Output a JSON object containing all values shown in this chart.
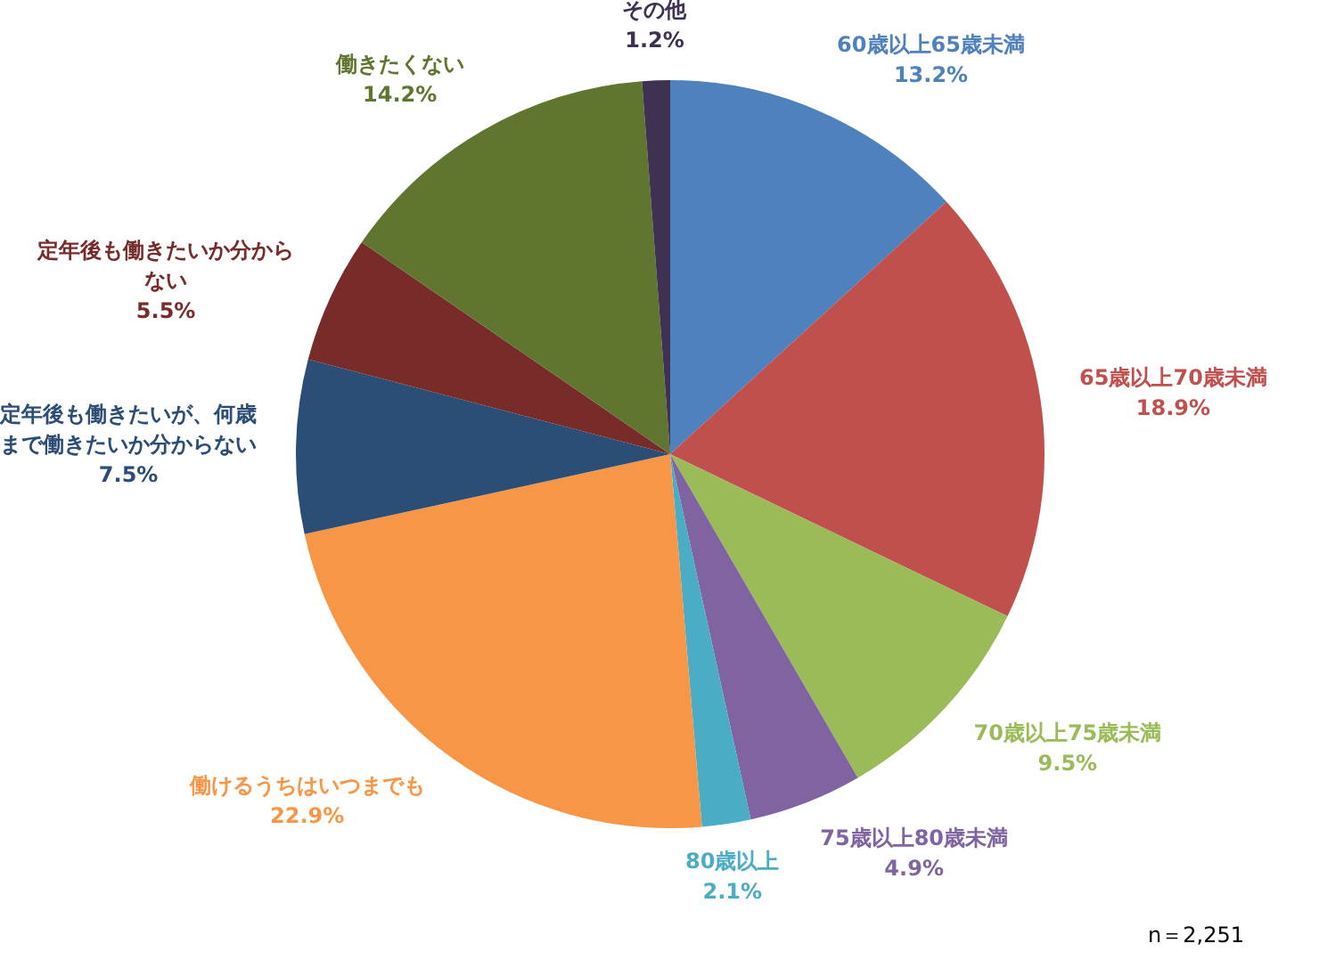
{
  "chart_data": {
    "type": "pie",
    "categories": [
      "60歳以上65歳未満",
      "65歳以上70歳未満",
      "70歳以上75歳未満",
      "75歳以上80歳未満",
      "80歳以上",
      "働けるうちはいつまでも",
      "定年後も働きたいが、何歳まで働きたいか分からない",
      "定年後も働きたいか分からない",
      "働きたくない",
      "その他"
    ],
    "values": [
      13.2,
      18.9,
      9.5,
      4.9,
      2.1,
      22.9,
      7.5,
      5.5,
      14.2,
      1.2
    ],
    "colors": [
      "#4f81bd",
      "#c0504d",
      "#9bbb59",
      "#8064a2",
      "#4bacc6",
      "#f79646",
      "#2c4d75",
      "#772c2a",
      "#5f7530",
      "#3f3151"
    ],
    "value_labels": [
      "13.2%",
      "18.9%",
      "9.5%",
      "4.9%",
      "2.1%",
      "22.9%",
      "7.5%",
      "5.5%",
      "14.2%",
      "1.2%"
    ],
    "legend": false,
    "annotations": [
      "n＝2,251"
    ]
  }
}
